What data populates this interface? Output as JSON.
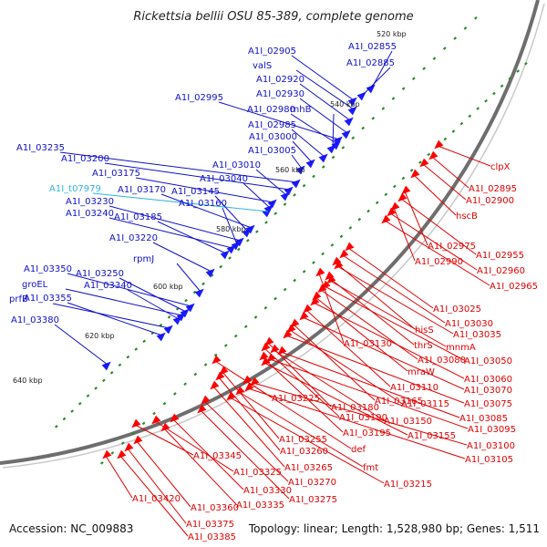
{
  "title": "Rickettsia bellii OSU 85-389, complete genome",
  "footer": {
    "accession": "Accession: NC_009883",
    "summary": "Topology: linear; Length: 1,528,980 bp; Genes: 1,511"
  },
  "colors": {
    "backbone": "#6e6e6e",
    "forward_label": "#1010c8",
    "reverse_label": "#e00000",
    "trna_label": "#30b4e0",
    "forward_feature": "#1a1aff",
    "reverse_feature": "#ff0000",
    "tick_mark": "#2a8a2a"
  },
  "kbp_markers": [
    "520 kbp",
    "540 kbp",
    "560 kbp",
    "580 kbp",
    "600 kbp",
    "620 kbp",
    "640 kbp"
  ],
  "forward_labels": [
    "A1I_02855",
    "A1I_02905",
    "A1I_02885",
    "valS",
    "A1I_02920",
    "A1I_02930",
    "A1I_02995",
    "A1I_02980",
    "rnhB",
    "A1I_02985",
    "A1I_03000",
    "A1I_03005",
    "A1I_03235",
    "A1I_03200",
    "A1I_03010",
    "A1I_03175",
    "A1I_03040",
    "A1I_t07979",
    "A1I_03170",
    "A1I_03145",
    "A1I_03230",
    "A1I_03160",
    "A1I_03240",
    "A1I_03185",
    "A1I_03220",
    "rpmJ",
    "A1I_03350",
    "A1I_03250",
    "groEL",
    "A1I_03340",
    "prfB",
    "A1I_03355",
    "A1I_03380"
  ],
  "reverse_labels": [
    "clpX",
    "A1I_02895",
    "A1I_02900",
    "hscB",
    "A1I_02975",
    "A1I_02955",
    "A1I_02990",
    "A1I_02960",
    "A1I_02965",
    "A1I_03025",
    "A1I_03030",
    "hisS",
    "A1I_03035",
    "A1I_03130",
    "thrS",
    "mnmA",
    "A1I_03080",
    "A1I_03050",
    "mraW",
    "A1I_03060",
    "A1I_03110",
    "A1I_03070",
    "A1I_03225",
    "A1I_03165",
    "A1I_03115",
    "A1I_03075",
    "A1I_03180",
    "A1I_03190",
    "A1I_03150",
    "A1I_03085",
    "A1I_03195",
    "A1I_03095",
    "A1I_03155",
    "A1I_03255",
    "def",
    "A1I_03100",
    "A1I_03260",
    "A1I_03105",
    "A1I_03345",
    "fmt",
    "A1I_03265",
    "A1I_03215",
    "A1I_03325",
    "A1I_03270",
    "A1I_03330",
    "A1I_03275",
    "A1I_03335",
    "A1I_03420",
    "A1I_03360",
    "A1I_03375",
    "A1I_03385"
  ]
}
